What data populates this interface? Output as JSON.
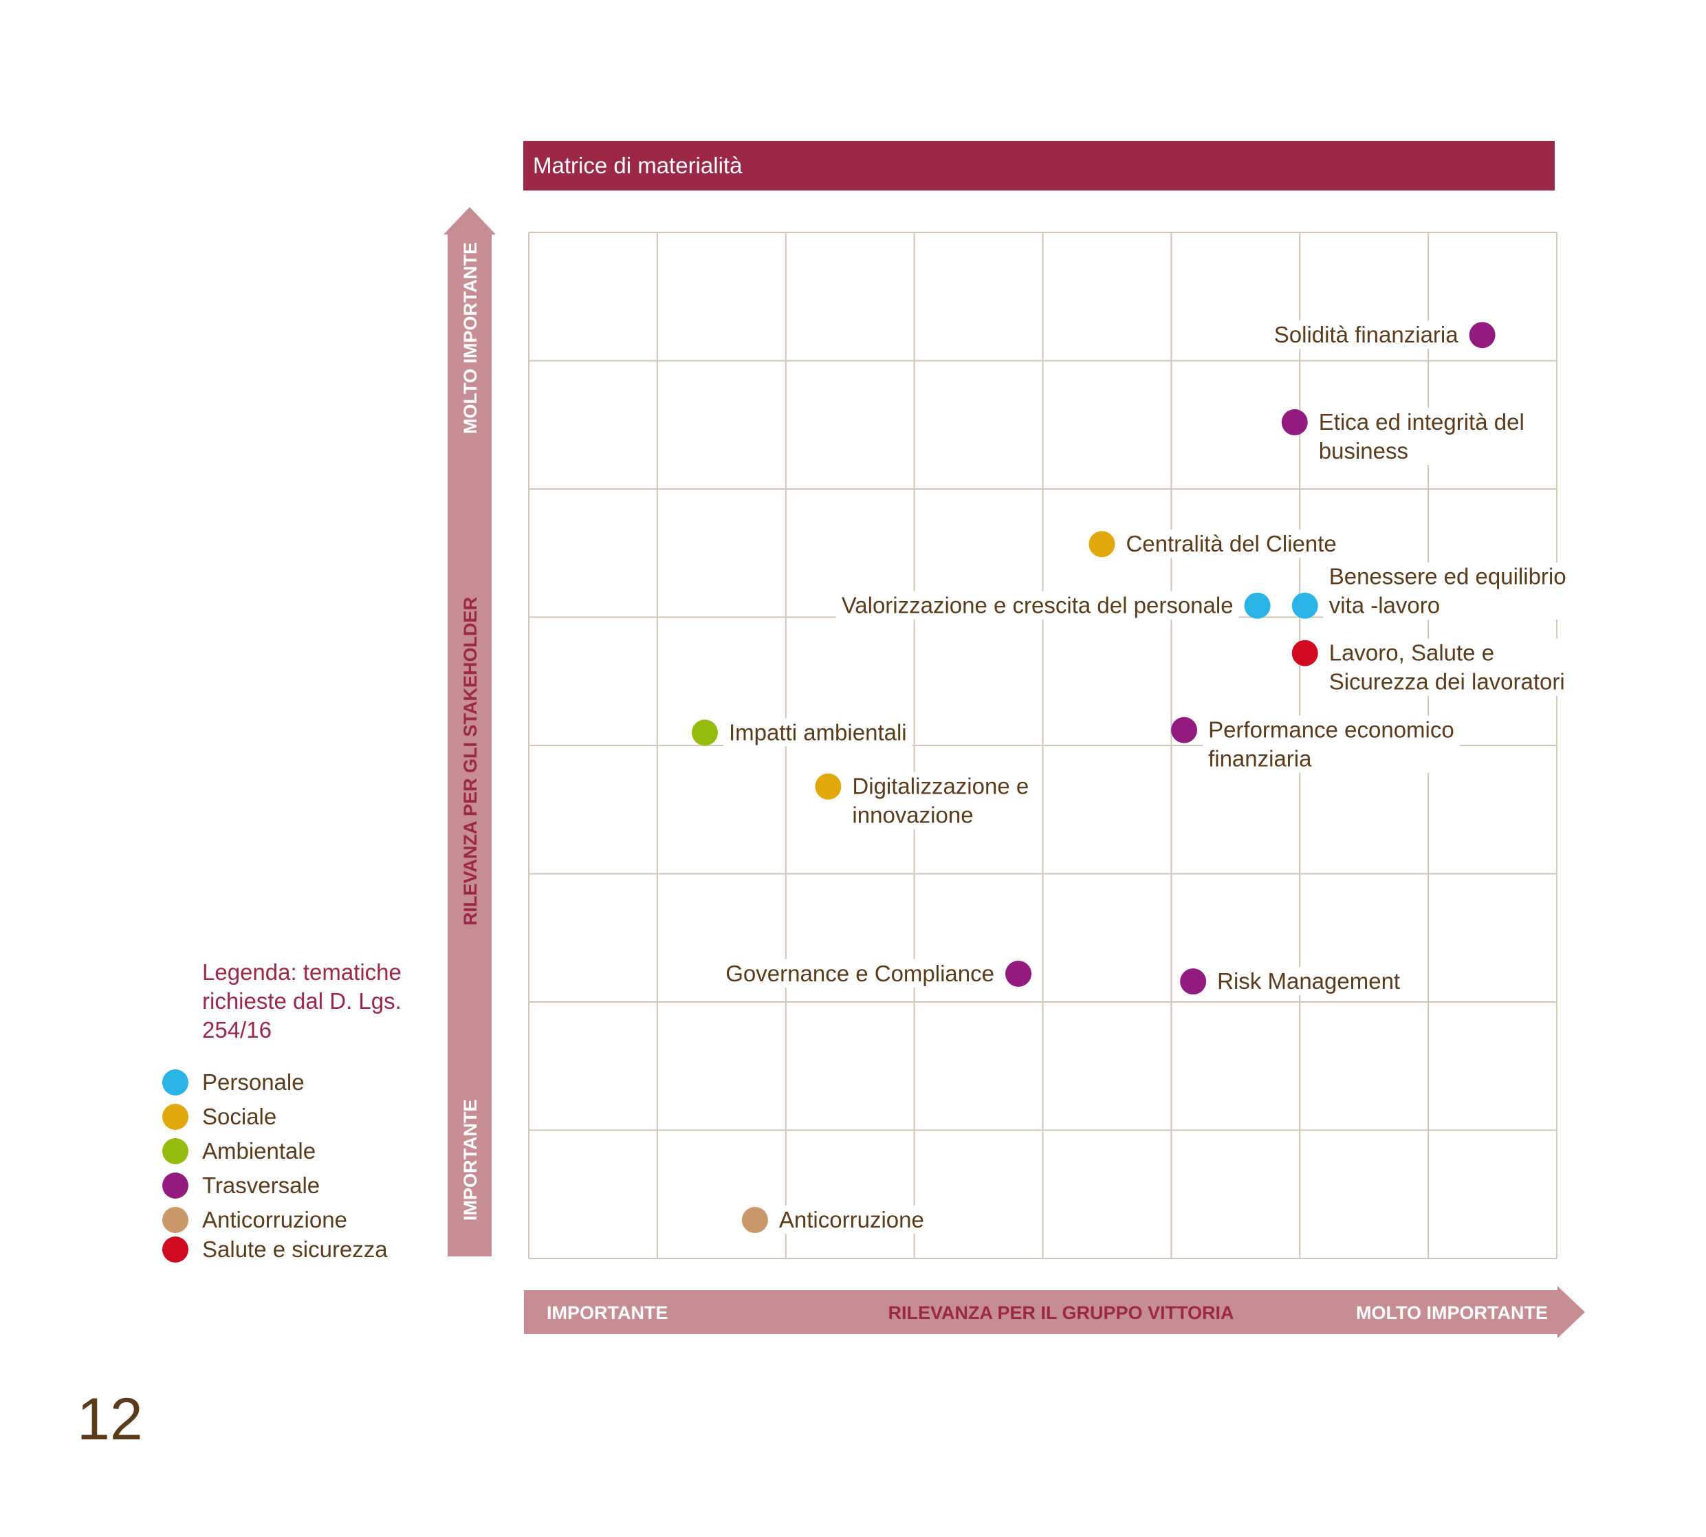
{
  "chart_data": {
    "type": "scatter",
    "title": "Matrice di materialità",
    "xlabel": "RILEVANZA PER IL GRUPPO VITTORIA",
    "ylabel": "RILEVANZA PER GLI STAKEHOLDER",
    "x_low_label": "IMPORTANTE",
    "x_high_label": "MOLTO IMPORTANTE",
    "y_low_label": "IMPORTANTE",
    "y_high_label": "MOLTO IMPORTANTE",
    "xlim": [
      0,
      8
    ],
    "ylim": [
      0,
      8
    ],
    "grid": true,
    "legend_position": "left",
    "categories": {
      "Personale": "#29b4e5",
      "Sociale": "#e2a80b",
      "Ambientale": "#95bb0f",
      "Trasversale": "#931b80",
      "Anticorruzione": "#c9986b",
      "Salute e sicurezza": "#cf0a20"
    },
    "points": [
      {
        "label": "Solidità finanziaria",
        "category": "Trasversale",
        "x": 7.42,
        "y": 7.2,
        "label_side": "left"
      },
      {
        "label": "Etica ed integrità del\nbusiness",
        "category": "Trasversale",
        "x": 5.96,
        "y": 6.52,
        "label_side": "right"
      },
      {
        "label": "Centralità del Cliente",
        "category": "Sociale",
        "x": 4.46,
        "y": 5.57,
        "label_side": "right"
      },
      {
        "label": "Valorizzazione e crescita del personale",
        "category": "Personale",
        "x": 5.67,
        "y": 5.09,
        "label_side": "left"
      },
      {
        "label": "Benessere ed equilibrio\nvita -lavoro",
        "category": "Personale",
        "x": 6.04,
        "y": 5.09,
        "label_side": "right",
        "label_dy": -1
      },
      {
        "label": "Lavoro, Salute e\nSicurezza dei lavoratori",
        "category": "Salute e sicurezza",
        "x": 6.04,
        "y": 4.72,
        "label_side": "right"
      },
      {
        "label": "Impatti ambientali",
        "category": "Ambientale",
        "x": 1.37,
        "y": 4.1,
        "label_side": "right"
      },
      {
        "label": "Performance economico\nfinanziaria",
        "category": "Trasversale",
        "x": 5.1,
        "y": 4.12,
        "label_side": "right"
      },
      {
        "label": "Digitalizzazione e\ninnovazione",
        "category": "Sociale",
        "x": 2.33,
        "y": 3.68,
        "label_side": "right"
      },
      {
        "label": "Governance e Compliance",
        "category": "Trasversale",
        "x": 3.81,
        "y": 2.22,
        "label_side": "left"
      },
      {
        "label": "Risk Management",
        "category": "Trasversale",
        "x": 5.17,
        "y": 2.16,
        "label_side": "right"
      },
      {
        "label": "Anticorruzione",
        "category": "Anticorruzione",
        "x": 1.76,
        "y": 0.3,
        "label_side": "right"
      }
    ]
  },
  "legend": {
    "title": "Legenda: tematiche richieste dal D. Lgs. 254/16",
    "items": [
      {
        "label": "Personale",
        "color": "#29b4e5"
      },
      {
        "label": "Sociale",
        "color": "#e2a80b"
      },
      {
        "label": "Ambientale",
        "color": "#95bb0f"
      },
      {
        "label": "Trasversale",
        "color": "#931b80"
      },
      {
        "label": "Anticorruzione",
        "color": "#c9986b"
      },
      {
        "label": "Salute e sicurezza",
        "color": "#cf0a20"
      }
    ]
  },
  "colors": {
    "title_bar": "#9a2846",
    "axis_arrow": "#c78d94",
    "axis_text": "#9a2846",
    "grid": "#cfc6b8",
    "text": "#5a3b1c"
  },
  "page_number": "12"
}
